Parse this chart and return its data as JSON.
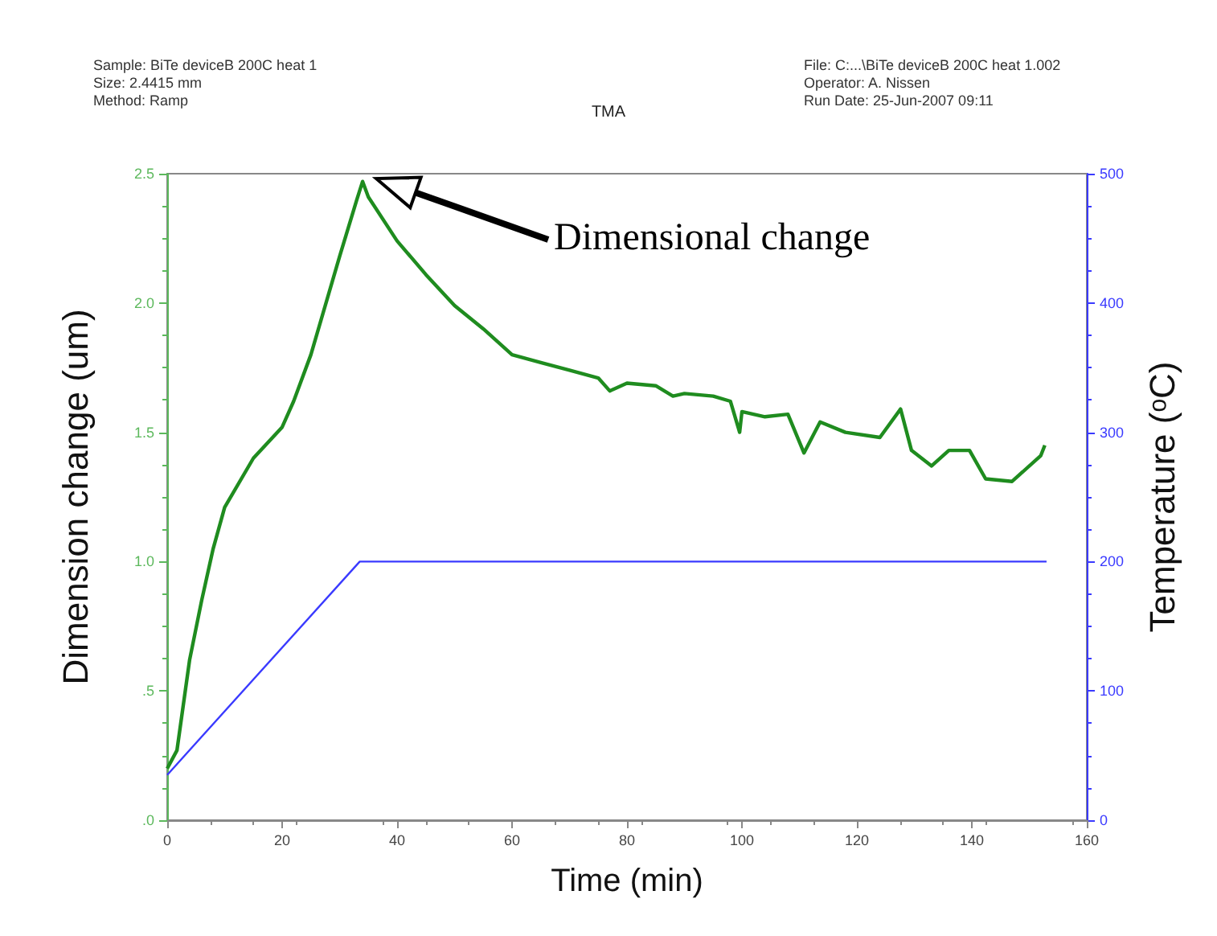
{
  "chart_data": {
    "type": "line",
    "title": "TMA",
    "xlabel": "Time (min)",
    "ylabel": "Dimension change (um)",
    "y2label": "Temperature (ᵒC)",
    "annotations": [
      "Sample: BiTe deviceB 200C heat 1",
      "Size: 2.4415 mm",
      "Method: Ramp",
      "File: C:...\\BiTe deviceB 200C heat 1.002",
      "Operator: A. Nissen",
      "Run Date: 25-Jun-2007 09:11",
      "Dimensional change"
    ],
    "xlim": [
      0,
      160
    ],
    "xticks": [
      0,
      20,
      40,
      60,
      80,
      100,
      120,
      140,
      160
    ],
    "ylim": [
      0,
      2.5
    ],
    "yticks": [
      {
        "value": 0,
        "label": ".0"
      },
      {
        "value": 0.5,
        "label": ".5"
      },
      {
        "value": 1,
        "label": "1.0"
      },
      {
        "value": 1.5,
        "label": "1.5"
      },
      {
        "value": 2,
        "label": "2.0"
      },
      {
        "value": 2.5,
        "label": "2.5"
      }
    ],
    "y2lim": [
      0,
      500
    ],
    "y2ticks": [
      0,
      100,
      200,
      300,
      400,
      500
    ],
    "marker": "none",
    "line_style": "solid",
    "series": [
      {
        "color": "#1f8c1f",
        "x": [
          0,
          1.7,
          3.9,
          6,
          8,
          10,
          15,
          20,
          22,
          25,
          30,
          33,
          34,
          35,
          40,
          45,
          50,
          55,
          60,
          65,
          70,
          75,
          77,
          80,
          85,
          88,
          90,
          95,
          98,
          99.6,
          100,
          104,
          108,
          110.8,
          113.6,
          118,
          124,
          127.6,
          129.5,
          133,
          136,
          139.6,
          142.4,
          147,
          152,
          152.7
        ],
        "values": [
          0.2,
          0.27,
          0.62,
          0.85,
          1.05,
          1.21,
          1.4,
          1.52,
          1.62,
          1.8,
          2.18,
          2.4,
          2.47,
          2.41,
          2.24,
          2.11,
          1.99,
          1.9,
          1.8,
          1.77,
          1.74,
          1.71,
          1.66,
          1.69,
          1.68,
          1.64,
          1.65,
          1.64,
          1.62,
          1.5,
          1.58,
          1.56,
          1.57,
          1.42,
          1.54,
          1.5,
          1.48,
          1.59,
          1.43,
          1.37,
          1.43,
          1.43,
          1.32,
          1.31,
          1.41,
          1.45
        ]
      },
      {
        "color": "#3a3aff",
        "axis": "y2",
        "x": [
          0,
          33.5,
          153
        ],
        "values": [
          35,
          200,
          200
        ]
      }
    ]
  }
}
